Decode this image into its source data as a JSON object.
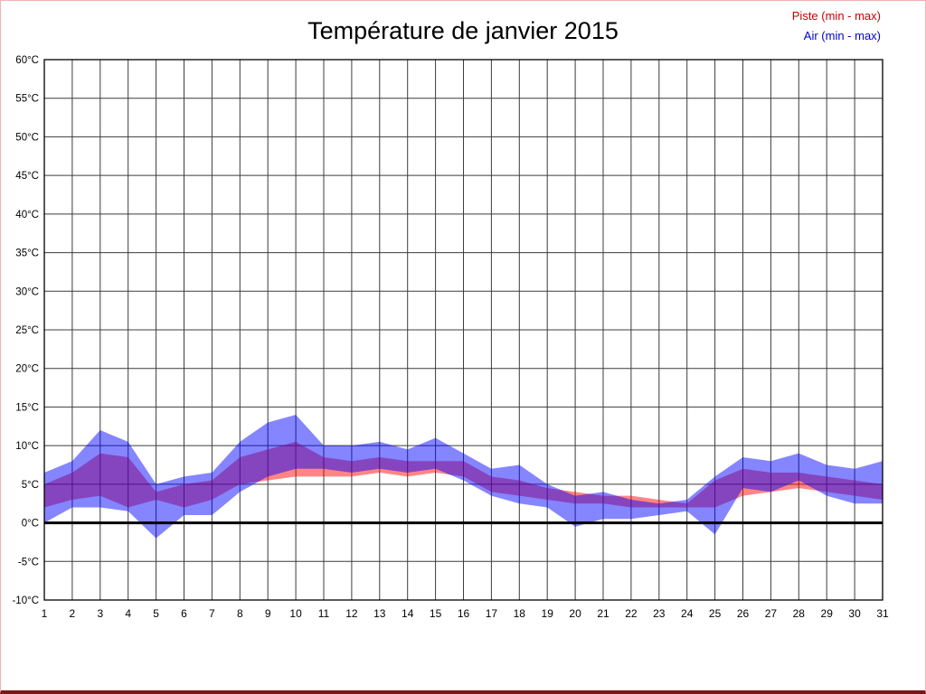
{
  "page": {
    "border_color": "#efb3b3",
    "bottom_border_color": "#7c1616",
    "background": "#ffffff"
  },
  "legend": {
    "items": [
      {
        "label": "Piste (min - max)",
        "color": "#cc0000"
      },
      {
        "label": "Air (min - max)",
        "color": "#0000cc"
      }
    ]
  },
  "chart_data": {
    "type": "area",
    "title": "Température de janvier 2015",
    "xlabel": "",
    "ylabel": "",
    "x": [
      1,
      2,
      3,
      4,
      5,
      6,
      7,
      8,
      9,
      10,
      11,
      12,
      13,
      14,
      15,
      16,
      17,
      18,
      19,
      20,
      21,
      22,
      23,
      24,
      25,
      26,
      27,
      28,
      29,
      30,
      31
    ],
    "ylim": [
      -10,
      60
    ],
    "ytick_step": 5,
    "ytick_suffix": "°C",
    "grid": true,
    "grid_color": "#3c3c3c",
    "axis_color": "#000000",
    "legend_position": "top-right",
    "zero_line": {
      "value": 0,
      "color": "#000000",
      "width": 3
    },
    "series": [
      {
        "name": "Piste (min - max)",
        "color": "#ff0000",
        "fill_opacity": 0.48,
        "min": [
          2,
          3,
          3.5,
          2,
          3,
          2,
          3,
          5,
          5.5,
          6,
          6,
          6,
          6.5,
          6,
          6.5,
          6,
          4,
          3.5,
          3,
          2.5,
          2.5,
          2,
          2,
          2,
          2,
          3.5,
          4,
          4.5,
          4,
          3.5,
          3
        ],
        "max": [
          5,
          6.5,
          9,
          8.5,
          4,
          5,
          5.5,
          8.5,
          9.5,
          10.5,
          8.5,
          8,
          8.5,
          8,
          8,
          8,
          6,
          5.5,
          4.5,
          4,
          3.5,
          3.5,
          3,
          2.5,
          5.5,
          7,
          6.5,
          6.5,
          6,
          5.5,
          5
        ]
      },
      {
        "name": "Air (min - max)",
        "color": "#0000ff",
        "fill_opacity": 0.48,
        "min": [
          0,
          2,
          2,
          1.5,
          -2,
          1,
          1,
          4,
          6,
          7,
          7,
          6.5,
          7,
          6.5,
          7,
          5.5,
          3.5,
          2.5,
          2,
          -0.5,
          0.5,
          0.5,
          1,
          1.5,
          -1.5,
          4.5,
          4,
          5.5,
          3.5,
          2.5,
          2.5
        ],
        "max": [
          6.5,
          8,
          12,
          10.5,
          5,
          6,
          6.5,
          10.5,
          13,
          14,
          10,
          10,
          10.5,
          9.5,
          11,
          9,
          7,
          7.5,
          5,
          3.5,
          4,
          3,
          2.5,
          3,
          6,
          8.5,
          8,
          9,
          7.5,
          7,
          8
        ]
      }
    ]
  }
}
